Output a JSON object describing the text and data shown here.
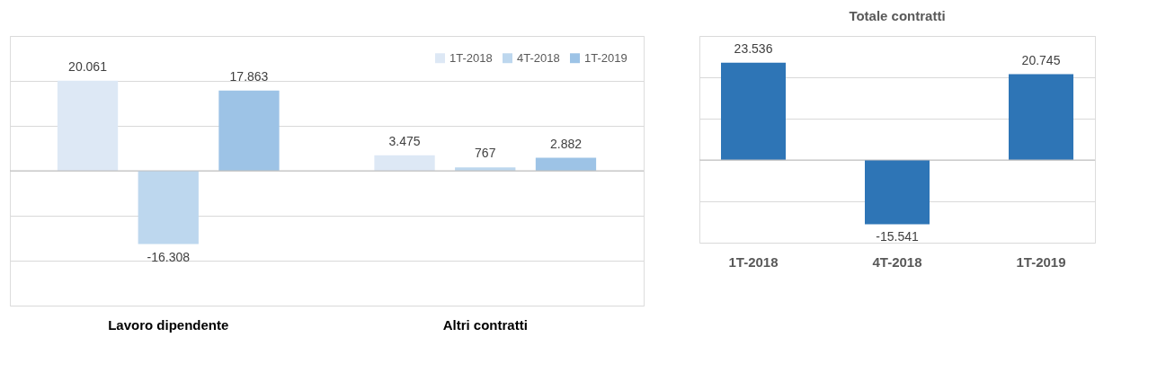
{
  "chart_data": [
    {
      "type": "bar",
      "categories": [
        "Lavoro dipendente",
        "Altri contratti"
      ],
      "series": [
        {
          "name": "1T-2018",
          "color": "#dde8f5",
          "values": [
            20061,
            3475
          ],
          "value_labels": [
            "20.061",
            "3.475"
          ]
        },
        {
          "name": "4T-2018",
          "color": "#bdd7ee",
          "values": [
            -16308,
            767
          ],
          "value_labels": [
            "-16.308",
            "767"
          ]
        },
        {
          "name": "1T-2019",
          "color": "#9dc3e6",
          "values": [
            17863,
            2882
          ],
          "value_labels": [
            "17.863",
            "2.882"
          ]
        }
      ],
      "ylim": [
        -30000,
        30000
      ],
      "grid": "y",
      "legend": "top right",
      "tick_labels": "x"
    },
    {
      "type": "bar",
      "title": "Totale contratti",
      "categories": [
        "1T-2018",
        "4T-2018",
        "1T-2019"
      ],
      "series": [
        {
          "color": "#2e75b6",
          "values": [
            23536,
            -15541,
            20745
          ],
          "value_labels": [
            "23.536",
            "-15.541",
            "20.745"
          ]
        }
      ],
      "ylim": [
        -20000,
        30000
      ],
      "grid": "y",
      "legend": false,
      "tick_labels": "x"
    }
  ]
}
